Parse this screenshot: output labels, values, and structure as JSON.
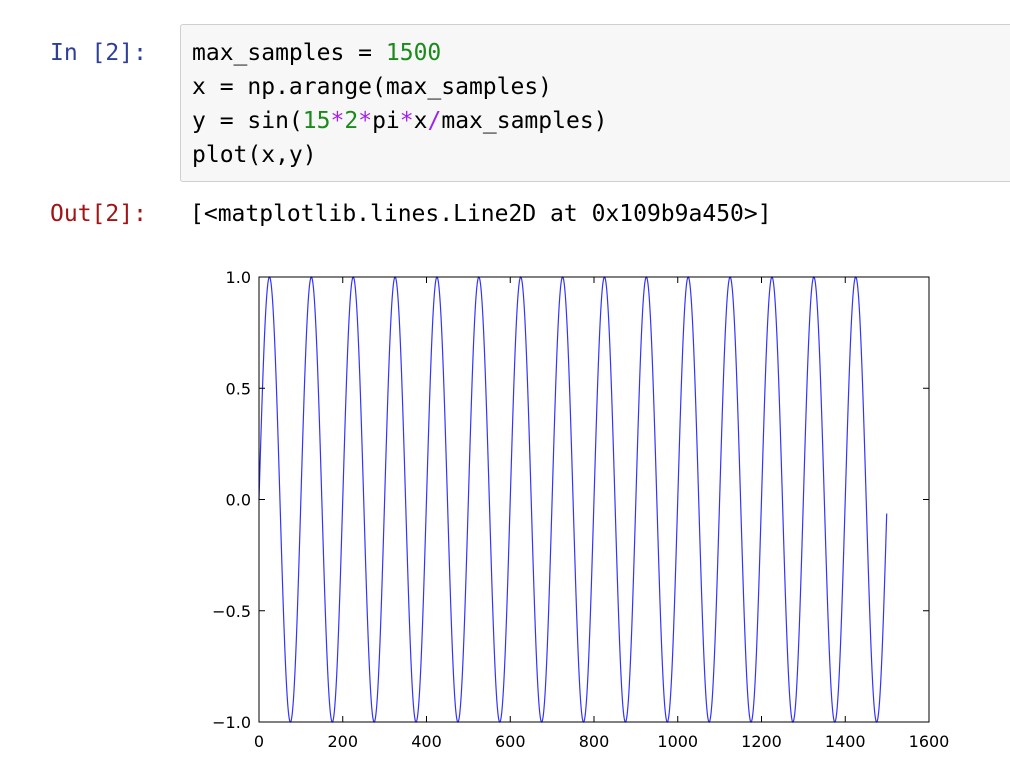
{
  "input_cell": {
    "prompt": "In [2]:",
    "code_lines": [
      [
        {
          "t": "max_samples = ",
          "c": ""
        },
        {
          "t": "1500",
          "c": "num"
        }
      ],
      [
        {
          "t": "x = np.arange(max_samples)",
          "c": ""
        }
      ],
      [
        {
          "t": "y = sin(",
          "c": ""
        },
        {
          "t": "15",
          "c": "num"
        },
        {
          "t": "*",
          "c": "op"
        },
        {
          "t": "2",
          "c": "num"
        },
        {
          "t": "*",
          "c": "op"
        },
        {
          "t": "pi",
          "c": ""
        },
        {
          "t": "*",
          "c": "op"
        },
        {
          "t": "x",
          "c": ""
        },
        {
          "t": "/",
          "c": "op"
        },
        {
          "t": "max_samples)",
          "c": ""
        }
      ],
      [
        {
          "t": "plot(x,y)",
          "c": ""
        }
      ]
    ]
  },
  "output_cell": {
    "prompt": "Out[2]:",
    "text": "[<matplotlib.lines.Line2D at 0x109b9a450>]"
  },
  "chart_data": {
    "type": "line",
    "title": "",
    "xlabel": "",
    "ylabel": "",
    "xlim": [
      0,
      1600
    ],
    "ylim": [
      -1.0,
      1.0
    ],
    "xticks": [
      "0",
      "200",
      "400",
      "600",
      "800",
      "1000",
      "1200",
      "1400",
      "1600"
    ],
    "yticks": [
      "1.0",
      "0.5",
      "0.0",
      "−0.5",
      "−1.0"
    ],
    "ytick_values": [
      1.0,
      0.5,
      0.0,
      -0.5,
      -1.0
    ],
    "grid": false,
    "series": [
      {
        "color": "#0000ff",
        "function": "sin(15*2*pi*x/1500)",
        "x_start": 0,
        "x_end": 1499,
        "n_points": 1500
      }
    ]
  }
}
